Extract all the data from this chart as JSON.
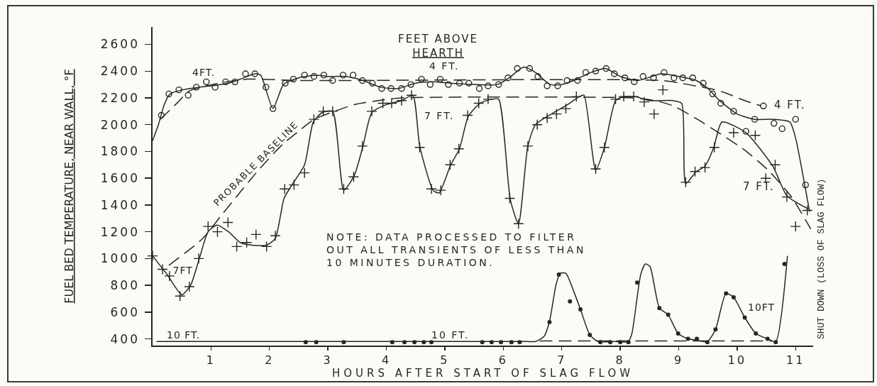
{
  "chart_data": {
    "type": "line",
    "xlabel": "HOURS AFTER START OF SLAG FLOW",
    "ylabel": "FUEL BED TEMPERATURE, NEAR WALL, °F",
    "xlim": [
      0,
      11.3
    ],
    "xticks": [
      1,
      2,
      3,
      4,
      5,
      6,
      7,
      8,
      9,
      10,
      11
    ],
    "ylim": [
      350,
      2730
    ],
    "yticks": [
      400,
      600,
      800,
      1000,
      1200,
      1400,
      1600,
      1800,
      2000,
      2200,
      2400,
      2600
    ],
    "series": [
      {
        "type": "scatter",
        "marker": "circle-open",
        "color": "#262626",
        "x": [
          0.15,
          0.28,
          0.45,
          0.61,
          0.75,
          0.92,
          1.07,
          1.25,
          1.41,
          1.59,
          1.75,
          1.94,
          2.06,
          2.27,
          2.41,
          2.6,
          2.76,
          2.93,
          3.08,
          3.26,
          3.43,
          3.59,
          3.76,
          3.92,
          4.08,
          4.26,
          4.42,
          4.6,
          4.75,
          4.92,
          5.06,
          5.25,
          5.41,
          5.59,
          5.74,
          5.92,
          6.08,
          6.24,
          6.45,
          6.59,
          6.75,
          6.93,
          7.09,
          7.27,
          7.41,
          7.58,
          7.76,
          7.9,
          8.08,
          8.24,
          8.39,
          8.57,
          8.75,
          8.92,
          9.07,
          9.24,
          9.42,
          9.58,
          9.72,
          9.94,
          10.15,
          10.3,
          10.45,
          10.63,
          10.77,
          11.0,
          11.17
        ],
        "values": [
          2070,
          2230,
          2260,
          2220,
          2280,
          2320,
          2280,
          2320,
          2320,
          2380,
          2380,
          2280,
          2120,
          2310,
          2340,
          2370,
          2360,
          2370,
          2330,
          2370,
          2370,
          2330,
          2310,
          2270,
          2270,
          2270,
          2300,
          2340,
          2300,
          2340,
          2300,
          2310,
          2310,
          2270,
          2290,
          2300,
          2350,
          2420,
          2420,
          2360,
          2290,
          2290,
          2330,
          2330,
          2390,
          2400,
          2420,
          2380,
          2350,
          2320,
          2360,
          2350,
          2390,
          2350,
          2350,
          2350,
          2310,
          2230,
          2160,
          2100,
          1950,
          2040,
          2140,
          2010,
          1970,
          2040,
          1550
        ]
      },
      {
        "marker": "none",
        "line_style": "solid",
        "color": "#262626",
        "x": [
          0,
          0.1,
          0.2,
          0.3,
          0.5,
          0.8,
          1.0,
          1.3,
          1.5,
          1.75,
          1.85,
          2.06,
          2.24,
          2.5,
          2.8,
          3.0,
          3.3,
          3.6,
          3.9,
          4.2,
          4.5,
          4.8,
          5.1,
          5.5,
          5.9,
          6.1,
          6.35,
          6.55,
          6.8,
          7.0,
          7.2,
          7.5,
          7.75,
          8.0,
          8.3,
          8.7,
          9.0,
          9.3,
          9.5,
          9.7,
          10.0,
          10.3,
          10.6,
          10.9,
          11.0,
          11.16,
          11.24
        ],
        "values": [
          1880,
          2000,
          2150,
          2230,
          2260,
          2280,
          2290,
          2310,
          2340,
          2380,
          2370,
          2120,
          2300,
          2350,
          2370,
          2360,
          2360,
          2330,
          2280,
          2270,
          2310,
          2320,
          2310,
          2300,
          2300,
          2350,
          2430,
          2390,
          2300,
          2300,
          2330,
          2390,
          2420,
          2360,
          2330,
          2380,
          2360,
          2330,
          2270,
          2180,
          2080,
          2040,
          2040,
          2020,
          1900,
          1540,
          1350
        ]
      },
      {
        "marker": "none",
        "line_style": "dashed",
        "color": "#262626",
        "x": [
          0.13,
          0.44,
          0.62,
          1.02,
          1.63,
          2.5,
          8.7,
          9.16,
          9.72,
          10.13,
          10.41
        ],
        "values": [
          2040,
          2170,
          2250,
          2300,
          2340,
          2330,
          2330,
          2300,
          2250,
          2180,
          2140
        ]
      },
      {
        "type": "scatter",
        "marker": "cross",
        "color": "#262626",
        "x": [
          0,
          0.17,
          0.29,
          0.47,
          0.63,
          0.79,
          0.95,
          1.11,
          1.29,
          1.44,
          1.61,
          1.77,
          1.95,
          2.1,
          2.26,
          2.42,
          2.6,
          2.76,
          2.92,
          3.08,
          3.27,
          3.44,
          3.59,
          3.75,
          3.94,
          4.09,
          4.26,
          4.43,
          4.57,
          4.77,
          4.93,
          5.09,
          5.24,
          5.39,
          5.58,
          5.74,
          6.11,
          6.26,
          6.42,
          6.58,
          6.75,
          6.91,
          7.07,
          7.25,
          7.58,
          7.73,
          7.92,
          8.06,
          8.23,
          8.41,
          8.58,
          8.73,
          9.12,
          9.28,
          9.45,
          9.61,
          9.94,
          10.31,
          10.49,
          10.65,
          10.85,
          11.0,
          11.2
        ],
        "values": [
          1020,
          920,
          870,
          720,
          790,
          1000,
          1240,
          1200,
          1270,
          1090,
          1120,
          1180,
          1090,
          1170,
          1520,
          1550,
          1640,
          2040,
          2100,
          2100,
          1520,
          1610,
          1840,
          2100,
          2160,
          2160,
          2180,
          2220,
          1830,
          1520,
          1510,
          1700,
          1820,
          2070,
          2160,
          2190,
          1450,
          1260,
          1840,
          2000,
          2050,
          2080,
          2120,
          2210,
          1670,
          1830,
          2190,
          2210,
          2210,
          2170,
          2080,
          2260,
          1570,
          1650,
          1680,
          1830,
          1940,
          1920,
          1600,
          1700,
          1460,
          1240,
          1360
        ]
      },
      {
        "marker": "none",
        "line_style": "solid",
        "color": "#262626",
        "x": [
          0,
          0.25,
          0.5,
          0.65,
          0.8,
          0.95,
          1.1,
          1.3,
          1.5,
          1.7,
          1.95,
          2.1,
          2.25,
          2.4,
          2.6,
          2.75,
          2.9,
          3.08,
          3.27,
          3.45,
          3.6,
          3.75,
          4.0,
          4.26,
          4.45,
          4.57,
          4.8,
          4.9,
          5.1,
          5.25,
          5.4,
          5.6,
          5.8,
          5.92,
          6.12,
          6.26,
          6.42,
          6.55,
          6.9,
          7.1,
          7.3,
          7.38,
          7.58,
          7.73,
          7.92,
          8.06,
          8.25,
          8.5,
          8.9,
          9.05,
          9.12,
          9.3,
          9.45,
          9.6,
          9.74,
          10.15,
          10.61,
          10.85,
          11.22
        ],
        "values": [
          1020,
          880,
          730,
          800,
          1000,
          1200,
          1250,
          1200,
          1120,
          1100,
          1100,
          1150,
          1450,
          1560,
          1700,
          2020,
          2090,
          2100,
          1510,
          1620,
          1840,
          2090,
          2150,
          2180,
          2220,
          1840,
          1510,
          1490,
          1700,
          1820,
          2060,
          2160,
          2190,
          2190,
          1440,
          1260,
          1840,
          2000,
          2100,
          2150,
          2210,
          2220,
          1660,
          1830,
          2180,
          2210,
          2210,
          2180,
          2180,
          2160,
          1560,
          1650,
          1690,
          1830,
          2020,
          1940,
          1690,
          1470,
          1370
        ]
      },
      {
        "marker": "none",
        "line_style": "dashed",
        "color": "#262626",
        "x": [
          0.28,
          0.86,
          1.19,
          1.83,
          2.24,
          2.44,
          2.76,
          3.05,
          3.45,
          3.86,
          4.26,
          8.2,
          8.6,
          8.91,
          9.32,
          9.72,
          10.13,
          10.53,
          10.93,
          11.26
        ],
        "values": [
          950,
          1150,
          1330,
          1670,
          1860,
          1930,
          2040,
          2090,
          2150,
          2180,
          2200,
          2200,
          2180,
          2140,
          2040,
          1930,
          1810,
          1660,
          1460,
          1220
        ]
      },
      {
        "type": "scatter",
        "marker": "circle",
        "color": "#262626",
        "x": [
          2.62,
          2.8,
          3.27,
          4.1,
          4.31,
          4.48,
          4.64,
          4.77,
          5.64,
          5.8,
          5.96,
          6.14,
          6.28,
          6.79,
          6.95,
          7.14,
          7.32,
          7.48,
          7.66,
          7.83,
          8.0,
          8.14,
          8.29,
          8.67,
          8.82,
          8.99,
          9.16,
          9.31,
          9.49,
          9.63,
          9.81,
          9.94,
          10.13,
          10.32,
          10.52,
          10.66,
          10.81
        ],
        "values": [
          375,
          375,
          375,
          375,
          375,
          375,
          375,
          375,
          375,
          375,
          375,
          375,
          375,
          525,
          880,
          680,
          620,
          430,
          375,
          375,
          375,
          375,
          820,
          630,
          580,
          440,
          400,
          400,
          375,
          470,
          740,
          710,
          560,
          440,
          400,
          375,
          960
        ]
      },
      {
        "marker": "none",
        "line_style": "solid",
        "color": "#262626",
        "x": [
          0.07,
          2.0,
          4.0,
          6.0,
          6.4,
          6.55,
          6.7,
          6.79,
          6.9,
          6.97,
          7.07,
          7.2,
          7.32,
          7.48,
          7.62,
          7.9,
          8.14,
          8.2,
          8.35,
          8.43,
          8.51,
          8.67,
          8.82,
          8.99,
          9.16,
          9.3,
          9.49,
          9.63,
          9.81,
          9.94,
          10.13,
          10.32,
          10.52,
          10.66,
          10.86
        ],
        "values": [
          380,
          380,
          380,
          380,
          380,
          380,
          420,
          530,
          800,
          890,
          890,
          760,
          620,
          430,
          380,
          380,
          380,
          440,
          880,
          960,
          940,
          630,
          580,
          440,
          400,
          390,
          380,
          470,
          740,
          710,
          560,
          440,
          400,
          380,
          1020
        ]
      },
      {
        "marker": "none",
        "line_style": "dashed",
        "color": "#262626",
        "x": [
          6.62,
          10.6
        ],
        "values": [
          385,
          385
        ]
      }
    ],
    "annotations": [
      "FEET ABOVE\nHEARTH",
      "NOTE: DATA PROCESSED TO FILTER\nOUT ALL TRANSIENTS OF LESS THAN\n10 MINUTES DURATION.",
      "SHUT DOWN (LOSS OF SLAG FLOW)",
      "4FT.",
      "4 FT.",
      "4 FT.",
      "7FT",
      "7 FT.",
      "7 FT.",
      "10 FT.",
      "10 FT.",
      "10FT",
      "PROBABLE BASELINE"
    ]
  }
}
